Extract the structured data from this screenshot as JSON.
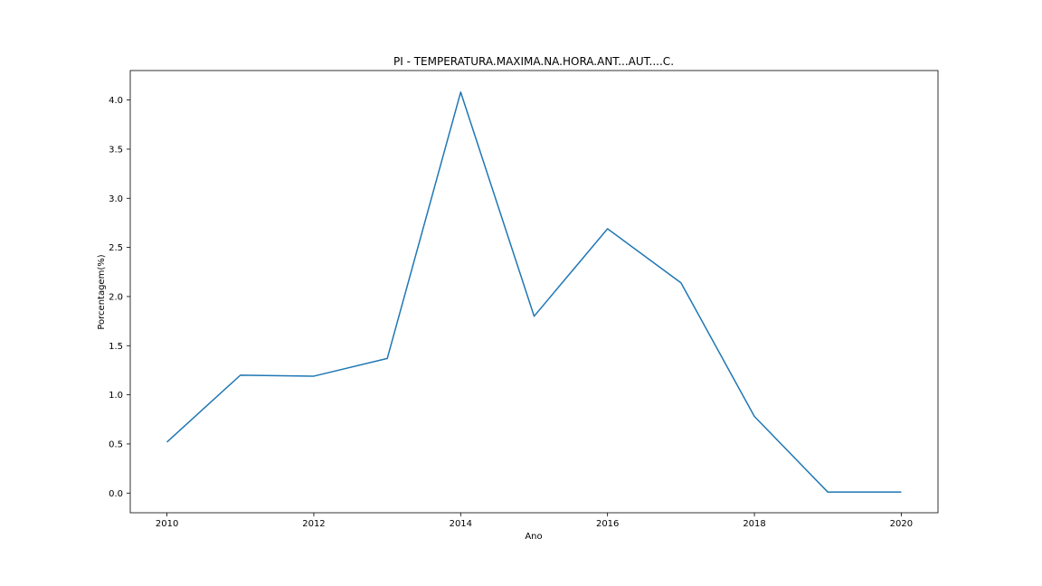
{
  "chart_data": {
    "type": "line",
    "title": "PI - TEMPERATURA.MAXIMA.NA.HORA.ANT...AUT....C.",
    "xlabel": "Ano",
    "ylabel": "Porcentagem(%)",
    "xlim": [
      2009.5,
      2020.5
    ],
    "ylim": [
      -0.2,
      4.3
    ],
    "xticks": [
      2010,
      2012,
      2014,
      2016,
      2018,
      2020
    ],
    "xtick_labels": [
      "2010",
      "2012",
      "2014",
      "2016",
      "2018",
      "2020"
    ],
    "yticks": [
      0.0,
      0.5,
      1.0,
      1.5,
      2.0,
      2.5,
      3.0,
      3.5,
      4.0
    ],
    "ytick_labels": [
      "0.0",
      "0.5",
      "1.0",
      "1.5",
      "2.0",
      "2.5",
      "3.0",
      "3.5",
      "4.0"
    ],
    "grid": false,
    "series": [
      {
        "color": "#1f77b4",
        "x": [
          2010,
          2011,
          2012,
          2013,
          2014,
          2015,
          2016,
          2017,
          2018,
          2019,
          2020
        ],
        "y": [
          0.52,
          1.2,
          1.19,
          1.37,
          4.08,
          1.8,
          2.69,
          2.14,
          0.78,
          0.01,
          0.01
        ]
      }
    ]
  }
}
